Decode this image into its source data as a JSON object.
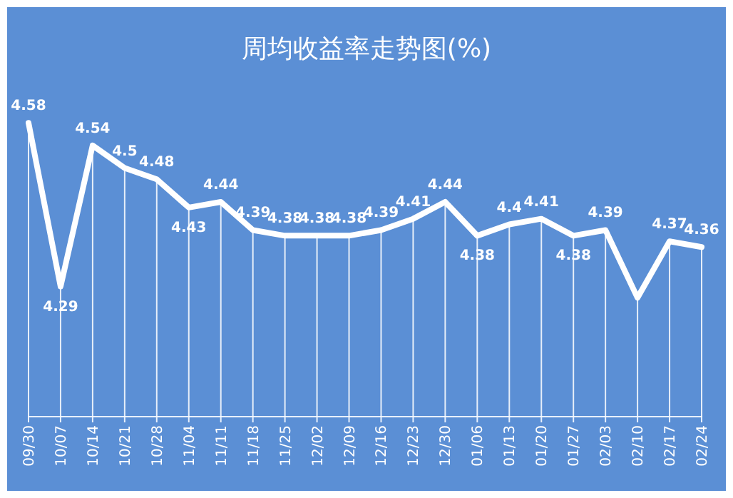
{
  "chart_data": {
    "type": "line",
    "title": "周均收益率走势图(%)",
    "categories": [
      "09/30",
      "10/07",
      "10/14",
      "10/21",
      "10/28",
      "11/04",
      "11/11",
      "11/18",
      "11/25",
      "12/02",
      "12/09",
      "12/16",
      "12/23",
      "12/30",
      "01/06",
      "01/13",
      "01/20",
      "01/27",
      "02/03",
      "02/10",
      "02/17",
      "02/24"
    ],
    "series": [
      {
        "color": "#ffffff",
        "values": [
          4.58,
          4.29,
          4.54,
          4.5,
          4.48,
          4.43,
          4.44,
          4.39,
          4.38,
          4.38,
          4.38,
          4.39,
          4.41,
          4.44,
          4.38,
          4.4,
          4.41,
          4.38,
          4.39,
          4.27,
          4.37,
          4.36
        ],
        "value_labels": [
          "4.58",
          "4.29",
          "4.54",
          "4.5",
          "4.48",
          "4.43",
          "4.44",
          "4.39",
          "4.38",
          "4.38",
          "4.38",
          "4.39",
          "4.41",
          "4.44",
          "4.38",
          "4.4",
          "4.41",
          "4.38",
          "4.39",
          null,
          "4.37",
          "4.36"
        ]
      }
    ],
    "marker": "none",
    "line_style": "solid",
    "grid": "x"
  }
}
